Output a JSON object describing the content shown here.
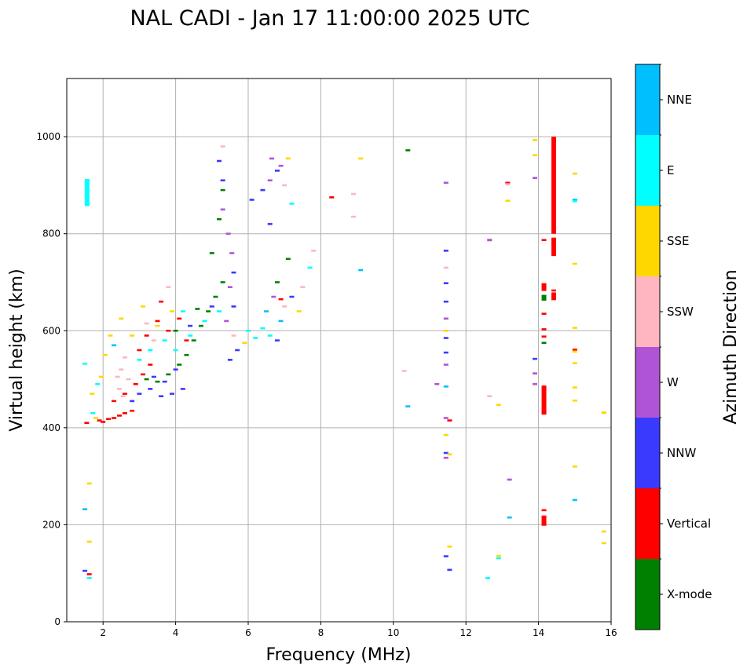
{
  "chart_data": {
    "type": "scatter",
    "title": "NAL CADI - Jan 17 11:00:00 2025 UTC",
    "xlabel": "Frequency (MHz)",
    "ylabel": "Virtual height (km)",
    "xlim": [
      1,
      16
    ],
    "ylim": [
      0,
      1120
    ],
    "xticks": [
      2,
      4,
      6,
      8,
      10,
      12,
      14,
      16
    ],
    "yticks": [
      0,
      200,
      400,
      600,
      800,
      1000
    ],
    "grid": true,
    "colorbar": {
      "label": "Azimuth Direction",
      "categories": [
        {
          "name": "X-mode",
          "color": "#008000"
        },
        {
          "name": "Vertical",
          "color": "#ff0000"
        },
        {
          "name": "NNW",
          "color": "#3a3aff"
        },
        {
          "name": "W",
          "color": "#b054d6"
        },
        {
          "name": "SSW",
          "color": "#ffb6c1"
        },
        {
          "name": "SSE",
          "color": "#ffd700"
        },
        {
          "name": "E",
          "color": "#00ffff"
        },
        {
          "name": "NNE",
          "color": "#00bfff"
        }
      ]
    },
    "echoes": [
      {
        "f": 1.56,
        "h": 885,
        "dir": "E",
        "dh": 56
      },
      {
        "f": 1.5,
        "h": 532,
        "dir": "E"
      },
      {
        "f": 1.5,
        "h": 232,
        "dir": "NNE"
      },
      {
        "f": 1.5,
        "h": 105,
        "dir": "NNW"
      },
      {
        "f": 1.62,
        "h": 98,
        "dir": "Vertical"
      },
      {
        "f": 1.62,
        "h": 90,
        "dir": "E"
      },
      {
        "f": 1.62,
        "h": 165,
        "dir": "SSE"
      },
      {
        "f": 1.62,
        "h": 285,
        "dir": "SSE"
      },
      {
        "f": 1.55,
        "h": 410,
        "dir": "Vertical"
      },
      {
        "f": 1.72,
        "h": 430,
        "dir": "E"
      },
      {
        "f": 1.8,
        "h": 420,
        "dir": "SSE"
      },
      {
        "f": 1.9,
        "h": 415,
        "dir": "Vertical"
      },
      {
        "f": 2.0,
        "h": 412,
        "dir": "Vertical"
      },
      {
        "f": 2.15,
        "h": 418,
        "dir": "Vertical"
      },
      {
        "f": 2.3,
        "h": 420,
        "dir": "Vertical"
      },
      {
        "f": 2.45,
        "h": 425,
        "dir": "Vertical"
      },
      {
        "f": 2.6,
        "h": 430,
        "dir": "Vertical"
      },
      {
        "f": 2.8,
        "h": 435,
        "dir": "Vertical"
      },
      {
        "f": 1.7,
        "h": 470,
        "dir": "SSE"
      },
      {
        "f": 1.85,
        "h": 490,
        "dir": "E"
      },
      {
        "f": 1.95,
        "h": 505,
        "dir": "SSE"
      },
      {
        "f": 2.05,
        "h": 550,
        "dir": "SSE"
      },
      {
        "f": 2.2,
        "h": 590,
        "dir": "SSE"
      },
      {
        "f": 2.5,
        "h": 625,
        "dir": "SSE"
      },
      {
        "f": 2.3,
        "h": 570,
        "dir": "NNE"
      },
      {
        "f": 2.4,
        "h": 505,
        "dir": "SSW"
      },
      {
        "f": 2.5,
        "h": 520,
        "dir": "SSW"
      },
      {
        "f": 2.6,
        "h": 545,
        "dir": "SSW"
      },
      {
        "f": 2.45,
        "h": 480,
        "dir": "SSW"
      },
      {
        "f": 2.7,
        "h": 500,
        "dir": "SSW"
      },
      {
        "f": 2.55,
        "h": 465,
        "dir": "SSW"
      },
      {
        "f": 2.3,
        "h": 455,
        "dir": "Vertical"
      },
      {
        "f": 2.6,
        "h": 470,
        "dir": "Vertical"
      },
      {
        "f": 2.9,
        "h": 490,
        "dir": "Vertical"
      },
      {
        "f": 3.1,
        "h": 510,
        "dir": "Vertical"
      },
      {
        "f": 3.3,
        "h": 530,
        "dir": "Vertical"
      },
      {
        "f": 3.0,
        "h": 560,
        "dir": "Vertical"
      },
      {
        "f": 3.2,
        "h": 590,
        "dir": "Vertical"
      },
      {
        "f": 3.5,
        "h": 620,
        "dir": "Vertical"
      },
      {
        "f": 3.6,
        "h": 660,
        "dir": "Vertical"
      },
      {
        "f": 3.8,
        "h": 600,
        "dir": "Vertical"
      },
      {
        "f": 4.1,
        "h": 625,
        "dir": "Vertical"
      },
      {
        "f": 4.3,
        "h": 580,
        "dir": "Vertical"
      },
      {
        "f": 2.8,
        "h": 455,
        "dir": "NNW"
      },
      {
        "f": 3.0,
        "h": 470,
        "dir": "NNW"
      },
      {
        "f": 3.3,
        "h": 480,
        "dir": "NNW"
      },
      {
        "f": 3.6,
        "h": 465,
        "dir": "NNW"
      },
      {
        "f": 3.9,
        "h": 470,
        "dir": "NNW"
      },
      {
        "f": 4.2,
        "h": 480,
        "dir": "NNW"
      },
      {
        "f": 3.4,
        "h": 505,
        "dir": "NNW"
      },
      {
        "f": 3.7,
        "h": 495,
        "dir": "NNW"
      },
      {
        "f": 4.0,
        "h": 520,
        "dir": "NNW"
      },
      {
        "f": 4.4,
        "h": 610,
        "dir": "NNW"
      },
      {
        "f": 5.0,
        "h": 650,
        "dir": "NNW"
      },
      {
        "f": 3.2,
        "h": 500,
        "dir": "X-mode"
      },
      {
        "f": 3.5,
        "h": 495,
        "dir": "X-mode"
      },
      {
        "f": 3.8,
        "h": 510,
        "dir": "X-mode"
      },
      {
        "f": 4.1,
        "h": 530,
        "dir": "X-mode"
      },
      {
        "f": 4.3,
        "h": 550,
        "dir": "X-mode"
      },
      {
        "f": 4.5,
        "h": 580,
        "dir": "X-mode"
      },
      {
        "f": 4.7,
        "h": 610,
        "dir": "X-mode"
      },
      {
        "f": 4.9,
        "h": 640,
        "dir": "X-mode"
      },
      {
        "f": 5.1,
        "h": 670,
        "dir": "X-mode"
      },
      {
        "f": 5.3,
        "h": 700,
        "dir": "X-mode"
      },
      {
        "f": 4.0,
        "h": 600,
        "dir": "X-mode"
      },
      {
        "f": 4.6,
        "h": 645,
        "dir": "X-mode"
      },
      {
        "f": 5.0,
        "h": 760,
        "dir": "X-mode"
      },
      {
        "f": 5.2,
        "h": 830,
        "dir": "X-mode"
      },
      {
        "f": 5.3,
        "h": 890,
        "dir": "X-mode"
      },
      {
        "f": 6.8,
        "h": 700,
        "dir": "X-mode"
      },
      {
        "f": 7.1,
        "h": 748,
        "dir": "X-mode"
      },
      {
        "f": 3.0,
        "h": 540,
        "dir": "E"
      },
      {
        "f": 3.3,
        "h": 560,
        "dir": "E"
      },
      {
        "f": 3.7,
        "h": 580,
        "dir": "E"
      },
      {
        "f": 4.0,
        "h": 560,
        "dir": "E"
      },
      {
        "f": 4.4,
        "h": 590,
        "dir": "E"
      },
      {
        "f": 4.8,
        "h": 620,
        "dir": "E"
      },
      {
        "f": 5.2,
        "h": 640,
        "dir": "E"
      },
      {
        "f": 4.2,
        "h": 640,
        "dir": "E"
      },
      {
        "f": 3.5,
        "h": 610,
        "dir": "SSE"
      },
      {
        "f": 3.9,
        "h": 640,
        "dir": "SSE"
      },
      {
        "f": 3.1,
        "h": 650,
        "dir": "SSE"
      },
      {
        "f": 2.8,
        "h": 590,
        "dir": "SSE"
      },
      {
        "f": 3.4,
        "h": 580,
        "dir": "SSW"
      },
      {
        "f": 3.8,
        "h": 690,
        "dir": "SSW"
      },
      {
        "f": 3.2,
        "h": 615,
        "dir": "SSW"
      },
      {
        "f": 5.3,
        "h": 980,
        "dir": "SSW"
      },
      {
        "f": 5.2,
        "h": 950,
        "dir": "NNW"
      },
      {
        "f": 5.3,
        "h": 910,
        "dir": "NNW"
      },
      {
        "f": 5.3,
        "h": 850,
        "dir": "W"
      },
      {
        "f": 5.45,
        "h": 800,
        "dir": "W"
      },
      {
        "f": 5.55,
        "h": 760,
        "dir": "W"
      },
      {
        "f": 5.6,
        "h": 720,
        "dir": "NNW"
      },
      {
        "f": 5.5,
        "h": 690,
        "dir": "W"
      },
      {
        "f": 5.6,
        "h": 650,
        "dir": "NNW"
      },
      {
        "f": 5.4,
        "h": 620,
        "dir": "W"
      },
      {
        "f": 5.6,
        "h": 590,
        "dir": "SSW"
      },
      {
        "f": 5.7,
        "h": 560,
        "dir": "NNW"
      },
      {
        "f": 5.5,
        "h": 540,
        "dir": "NNW"
      },
      {
        "f": 5.9,
        "h": 575,
        "dir": "SSE"
      },
      {
        "f": 6.0,
        "h": 600,
        "dir": "E"
      },
      {
        "f": 6.2,
        "h": 585,
        "dir": "E"
      },
      {
        "f": 6.4,
        "h": 605,
        "dir": "E"
      },
      {
        "f": 6.6,
        "h": 590,
        "dir": "E"
      },
      {
        "f": 6.8,
        "h": 580,
        "dir": "NNW"
      },
      {
        "f": 6.9,
        "h": 620,
        "dir": "NNE"
      },
      {
        "f": 6.5,
        "h": 640,
        "dir": "NNE"
      },
      {
        "f": 7.0,
        "h": 650,
        "dir": "SSW"
      },
      {
        "f": 7.2,
        "h": 670,
        "dir": "NNW"
      },
      {
        "f": 7.4,
        "h": 640,
        "dir": "SSE"
      },
      {
        "f": 7.5,
        "h": 690,
        "dir": "SSW"
      },
      {
        "f": 6.7,
        "h": 670,
        "dir": "W"
      },
      {
        "f": 6.9,
        "h": 665,
        "dir": "Vertical"
      },
      {
        "f": 6.1,
        "h": 870,
        "dir": "NNW"
      },
      {
        "f": 6.4,
        "h": 890,
        "dir": "NNW"
      },
      {
        "f": 6.6,
        "h": 910,
        "dir": "W"
      },
      {
        "f": 6.8,
        "h": 930,
        "dir": "NNW"
      },
      {
        "f": 6.65,
        "h": 955,
        "dir": "W"
      },
      {
        "f": 6.9,
        "h": 940,
        "dir": "W"
      },
      {
        "f": 7.0,
        "h": 900,
        "dir": "SSW"
      },
      {
        "f": 7.1,
        "h": 955,
        "dir": "SSE"
      },
      {
        "f": 6.6,
        "h": 820,
        "dir": "NNW"
      },
      {
        "f": 7.2,
        "h": 862,
        "dir": "E"
      },
      {
        "f": 7.7,
        "h": 730,
        "dir": "E"
      },
      {
        "f": 7.8,
        "h": 765,
        "dir": "SSW"
      },
      {
        "f": 8.3,
        "h": 875,
        "dir": "Vertical"
      },
      {
        "f": 8.9,
        "h": 882,
        "dir": "SSW"
      },
      {
        "f": 8.9,
        "h": 835,
        "dir": "SSW"
      },
      {
        "f": 9.1,
        "h": 955,
        "dir": "SSE"
      },
      {
        "f": 9.1,
        "h": 725,
        "dir": "NNE"
      },
      {
        "f": 10.4,
        "h": 972,
        "dir": "X-mode"
      },
      {
        "f": 10.3,
        "h": 517,
        "dir": "SSW"
      },
      {
        "f": 10.4,
        "h": 444,
        "dir": "NNE"
      },
      {
        "f": 11.2,
        "h": 490,
        "dir": "W"
      },
      {
        "f": 11.45,
        "h": 905,
        "dir": "W"
      },
      {
        "f": 11.45,
        "h": 765,
        "dir": "NNW"
      },
      {
        "f": 11.45,
        "h": 730,
        "dir": "SSW"
      },
      {
        "f": 11.45,
        "h": 698,
        "dir": "NNW"
      },
      {
        "f": 11.45,
        "h": 660,
        "dir": "NNW"
      },
      {
        "f": 11.45,
        "h": 625,
        "dir": "W"
      },
      {
        "f": 11.45,
        "h": 600,
        "dir": "SSE"
      },
      {
        "f": 11.45,
        "h": 585,
        "dir": "NNW"
      },
      {
        "f": 11.45,
        "h": 555,
        "dir": "NNW"
      },
      {
        "f": 11.45,
        "h": 530,
        "dir": "W"
      },
      {
        "f": 11.45,
        "h": 485,
        "dir": "NNE"
      },
      {
        "f": 11.45,
        "h": 420,
        "dir": "W"
      },
      {
        "f": 11.55,
        "h": 415,
        "dir": "Vertical"
      },
      {
        "f": 11.45,
        "h": 385,
        "dir": "SSE"
      },
      {
        "f": 11.45,
        "h": 348,
        "dir": "NNW"
      },
      {
        "f": 11.55,
        "h": 345,
        "dir": "SSE"
      },
      {
        "f": 11.45,
        "h": 338,
        "dir": "W"
      },
      {
        "f": 11.55,
        "h": 155,
        "dir": "SSE"
      },
      {
        "f": 11.45,
        "h": 135,
        "dir": "NNW"
      },
      {
        "f": 11.55,
        "h": 107,
        "dir": "NNW"
      },
      {
        "f": 12.65,
        "h": 787,
        "dir": "W",
        "dh": 5
      },
      {
        "f": 12.65,
        "h": 465,
        "dir": "SSW"
      },
      {
        "f": 12.9,
        "h": 447,
        "dir": "SSE"
      },
      {
        "f": 12.6,
        "h": 90,
        "dir": "E"
      },
      {
        "f": 12.9,
        "h": 136,
        "dir": "SSE"
      },
      {
        "f": 12.9,
        "h": 131,
        "dir": "E"
      },
      {
        "f": 13.15,
        "h": 905,
        "dir": "Vertical"
      },
      {
        "f": 13.15,
        "h": 902,
        "dir": "SSW"
      },
      {
        "f": 13.15,
        "h": 868,
        "dir": "SSE"
      },
      {
        "f": 13.2,
        "h": 293,
        "dir": "W"
      },
      {
        "f": 13.2,
        "h": 215,
        "dir": "NNE"
      },
      {
        "f": 13.9,
        "h": 993,
        "dir": "SSE"
      },
      {
        "f": 13.9,
        "h": 962,
        "dir": "SSE"
      },
      {
        "f": 13.9,
        "h": 915,
        "dir": "W"
      },
      {
        "f": 13.9,
        "h": 542,
        "dir": "NNW"
      },
      {
        "f": 13.9,
        "h": 512,
        "dir": "W"
      },
      {
        "f": 13.9,
        "h": 490,
        "dir": "W"
      },
      {
        "f": 14.15,
        "h": 690,
        "dir": "Vertical",
        "dh": 16
      },
      {
        "f": 14.15,
        "h": 668,
        "dir": "X-mode",
        "dh": 12
      },
      {
        "f": 14.15,
        "h": 635,
        "dir": "Vertical"
      },
      {
        "f": 14.15,
        "h": 603,
        "dir": "Vertical"
      },
      {
        "f": 14.15,
        "h": 588,
        "dir": "Vertical"
      },
      {
        "f": 14.15,
        "h": 575,
        "dir": "X-mode"
      },
      {
        "f": 14.15,
        "h": 457,
        "dir": "Vertical",
        "dh": 60
      },
      {
        "f": 14.15,
        "h": 432,
        "dir": "Vertical"
      },
      {
        "f": 14.15,
        "h": 230,
        "dir": "Vertical"
      },
      {
        "f": 14.15,
        "h": 210,
        "dir": "Vertical",
        "dh": 18
      },
      {
        "f": 14.15,
        "h": 200,
        "dir": "Vertical"
      },
      {
        "f": 14.15,
        "h": 787,
        "dir": "Vertical"
      },
      {
        "f": 14.42,
        "h": 900,
        "dir": "Vertical",
        "dh": 200
      },
      {
        "f": 14.42,
        "h": 773,
        "dir": "Vertical",
        "dh": 38
      },
      {
        "f": 14.42,
        "h": 683,
        "dir": "Vertical"
      },
      {
        "f": 14.42,
        "h": 671,
        "dir": "Vertical",
        "dh": 16
      },
      {
        "f": 15.0,
        "h": 924,
        "dir": "SSE"
      },
      {
        "f": 15.0,
        "h": 870,
        "dir": "NNE"
      },
      {
        "f": 15.0,
        "h": 867,
        "dir": "E"
      },
      {
        "f": 15.0,
        "h": 738,
        "dir": "SSE"
      },
      {
        "f": 15.0,
        "h": 606,
        "dir": "SSE"
      },
      {
        "f": 15.0,
        "h": 561,
        "dir": "Vertical"
      },
      {
        "f": 15.0,
        "h": 557,
        "dir": "SSE"
      },
      {
        "f": 15.0,
        "h": 533,
        "dir": "SSE"
      },
      {
        "f": 15.0,
        "h": 483,
        "dir": "SSE"
      },
      {
        "f": 15.0,
        "h": 456,
        "dir": "SSE"
      },
      {
        "f": 15.0,
        "h": 320,
        "dir": "SSE"
      },
      {
        "f": 15.0,
        "h": 251,
        "dir": "NNE"
      },
      {
        "f": 15.8,
        "h": 431,
        "dir": "SSE",
        "dh": 5
      },
      {
        "f": 15.8,
        "h": 186,
        "dir": "SSE"
      },
      {
        "f": 15.8,
        "h": 162,
        "dir": "SSE"
      }
    ]
  }
}
